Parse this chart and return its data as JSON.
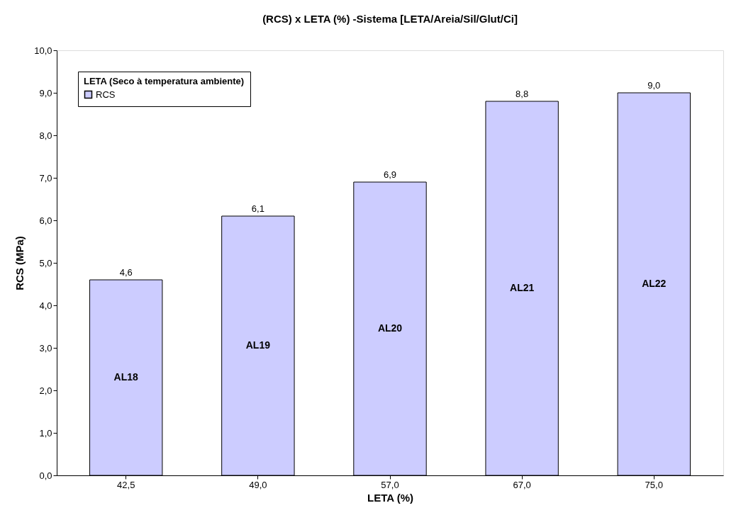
{
  "chart_data": {
    "type": "bar",
    "title": "(RCS) x LETA (%) -Sistema [LETA/Areia/Sil/Glut/Ci]",
    "xlabel": "LETA (%)",
    "ylabel": "RCS (MPa)",
    "legend_title": "LETA (Seco à temperatura ambiente)",
    "legend": "top left",
    "grid": false,
    "categories": [
      "42,5",
      "49,0",
      "57,0",
      "67,0",
      "75,0"
    ],
    "series": [
      {
        "name": "RCS",
        "color": "#ccccff",
        "values": [
          4.6,
          6.1,
          6.9,
          8.8,
          9.0
        ]
      }
    ],
    "value_labels": [
      "4,6",
      "6,1",
      "6,9",
      "8,8",
      "9,0"
    ],
    "ylim": [
      0,
      10
    ],
    "yticks": [
      {
        "value": 0,
        "label": "0,0"
      },
      {
        "value": 1,
        "label": "1,0"
      },
      {
        "value": 2,
        "label": "2,0"
      },
      {
        "value": 3,
        "label": "3,0"
      },
      {
        "value": 4,
        "label": "4,0"
      },
      {
        "value": 5,
        "label": "5,0"
      },
      {
        "value": 6,
        "label": "6,0"
      },
      {
        "value": 7,
        "label": "7,0"
      },
      {
        "value": 8,
        "label": "8,0"
      },
      {
        "value": 9,
        "label": "9,0"
      },
      {
        "value": 10,
        "label": "10,0"
      }
    ],
    "annotations": [
      "AL18",
      "AL19",
      "AL20",
      "AL21",
      "AL22"
    ]
  }
}
